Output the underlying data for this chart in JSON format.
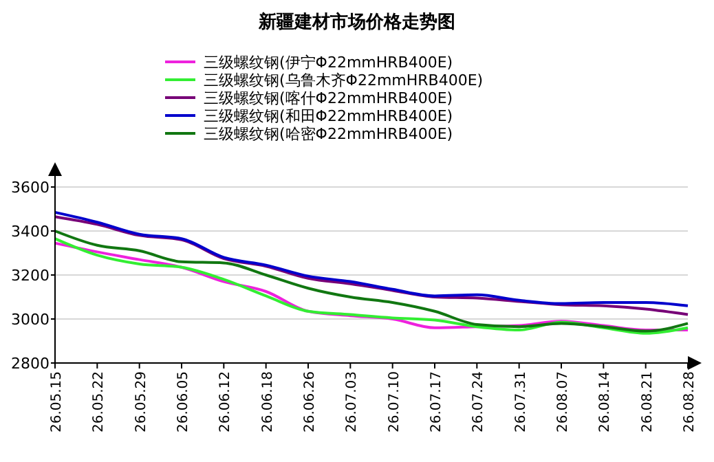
{
  "chart_data": {
    "type": "line",
    "title": "新疆建材市场价格走势图",
    "categories": [
      "26.05.15",
      "26.05.22",
      "26.05.29",
      "26.06.05",
      "26.06.12",
      "26.06.18",
      "26.06.26",
      "26.07.03",
      "26.07.10",
      "26.07.17",
      "26.07.24",
      "26.07.31",
      "26.08.07",
      "26.08.14",
      "26.08.21",
      "26.08.28"
    ],
    "series": [
      {
        "name": "三级螺纹钢(伊宁Φ22mmHRB400E)",
        "color": "#ee22dd",
        "values": [
          3345,
          3305,
          3270,
          3235,
          3170,
          3125,
          3035,
          3015,
          3000,
          2960,
          2965,
          2970,
          2990,
          2970,
          2950,
          2950
        ]
      },
      {
        "name": "三级螺纹钢(乌鲁木齐Φ22mmHRB400E)",
        "color": "#33ee33",
        "values": [
          3365,
          3290,
          3250,
          3235,
          3180,
          3105,
          3035,
          3020,
          3005,
          2995,
          2965,
          2950,
          2985,
          2960,
          2935,
          2960
        ]
      },
      {
        "name": "三级螺纹钢(喀什Φ22mmHRB400E)",
        "color": "#770077",
        "values": [
          3465,
          3430,
          3380,
          3360,
          3275,
          3240,
          3185,
          3160,
          3130,
          3100,
          3095,
          3080,
          3065,
          3060,
          3045,
          3020
        ]
      },
      {
        "name": "三级螺纹钢(和田Φ22mmHRB400E)",
        "color": "#0000cc",
        "values": [
          3485,
          3440,
          3385,
          3365,
          3280,
          3245,
          3195,
          3170,
          3135,
          3105,
          3110,
          3085,
          3070,
          3075,
          3075,
          3060
        ]
      },
      {
        "name": "三级螺纹钢(哈密Φ22mmHRB400E)",
        "color": "#117711",
        "values": [
          3400,
          3335,
          3310,
          3260,
          3255,
          3200,
          3140,
          3100,
          3075,
          3035,
          2975,
          2965,
          2980,
          2965,
          2945,
          2980
        ]
      }
    ],
    "ylim": [
      2800,
      3600
    ],
    "yticks": [
      2800,
      3000,
      3200,
      3400,
      3600
    ],
    "grid": "y",
    "legend": "top",
    "marker": "none",
    "line_style": "solid"
  }
}
